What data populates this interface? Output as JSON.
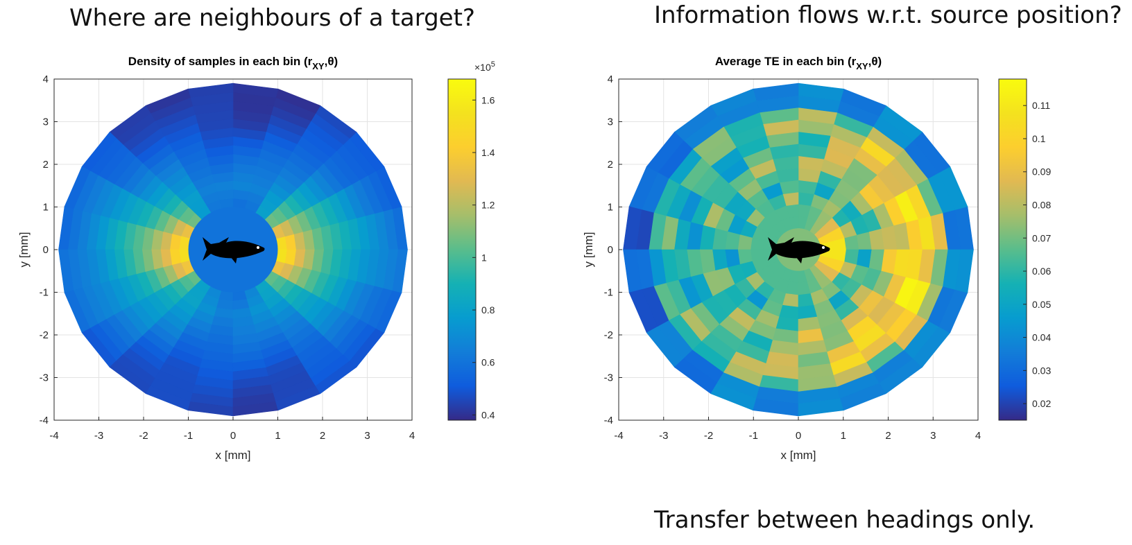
{
  "headings": {
    "left": "Where are neighbours of a target?",
    "right": "Information flows w.r.t. source position?",
    "footnote": "Transfer between headings only."
  },
  "chart_data": [
    {
      "type": "heatmap",
      "title_prefix": "Density of samples in each bin (r",
      "title_sub": "XY",
      "title_suffix": ",θ)",
      "xlabel": "x [mm]",
      "ylabel": "y [mm]",
      "xlim": [
        -4,
        4
      ],
      "ylim": [
        -4,
        4
      ],
      "xticks": [
        -4,
        -3,
        -2,
        -1,
        0,
        1,
        2,
        3,
        4
      ],
      "yticks": [
        -4,
        -3,
        -2,
        -1,
        0,
        1,
        2,
        3,
        4
      ],
      "grid": true,
      "inner_radius": 1.0,
      "outer_radius": 3.9,
      "colorbar": {
        "min": 0.38,
        "max": 1.68,
        "ticks": [
          0.4,
          0.6,
          0.8,
          1,
          1.2,
          1.4,
          1.6
        ],
        "tick_labels": [
          "0.4",
          "0.6",
          "0.8",
          "1",
          "1.2",
          "1.4",
          "1.6"
        ],
        "multiplier": "×10",
        "exponent": "5"
      },
      "radial_profile_radii": [
        1.2,
        1.5,
        2.0,
        2.5,
        3.0,
        3.5,
        3.9
      ],
      "radial_profile_side": [
        1.55,
        1.3,
        1.05,
        0.9,
        0.75,
        0.65,
        0.58
      ],
      "radial_profile_front_back": [
        0.62,
        0.68,
        0.62,
        0.55,
        0.48,
        0.45,
        0.44
      ]
    },
    {
      "type": "heatmap",
      "title_prefix": "Average TE in each bin (r",
      "title_sub": "XY",
      "title_suffix": ",θ)",
      "xlabel": "x [mm]",
      "ylabel": "y [mm]",
      "xlim": [
        -4,
        4
      ],
      "ylim": [
        -4,
        4
      ],
      "xticks": [
        -4,
        -3,
        -2,
        -1,
        0,
        1,
        2,
        3,
        4
      ],
      "yticks": [
        -4,
        -3,
        -2,
        -1,
        0,
        1,
        2,
        3,
        4
      ],
      "grid": true,
      "inner_radius": 0.5,
      "outer_radius": 3.9,
      "colorbar": {
        "min": 0.015,
        "max": 0.118,
        "ticks": [
          0.02,
          0.03,
          0.04,
          0.05,
          0.06,
          0.07,
          0.08,
          0.09,
          0.1,
          0.11
        ],
        "tick_labels": [
          "0.02",
          "0.03",
          "0.04",
          "0.05",
          "0.06",
          "0.07",
          "0.08",
          "0.09",
          "0.1",
          "0.11"
        ]
      },
      "peak_value_front": 0.112,
      "peak_ring_right": 0.11,
      "outer_ring_value": 0.038,
      "back_minimum": 0.02
    }
  ]
}
